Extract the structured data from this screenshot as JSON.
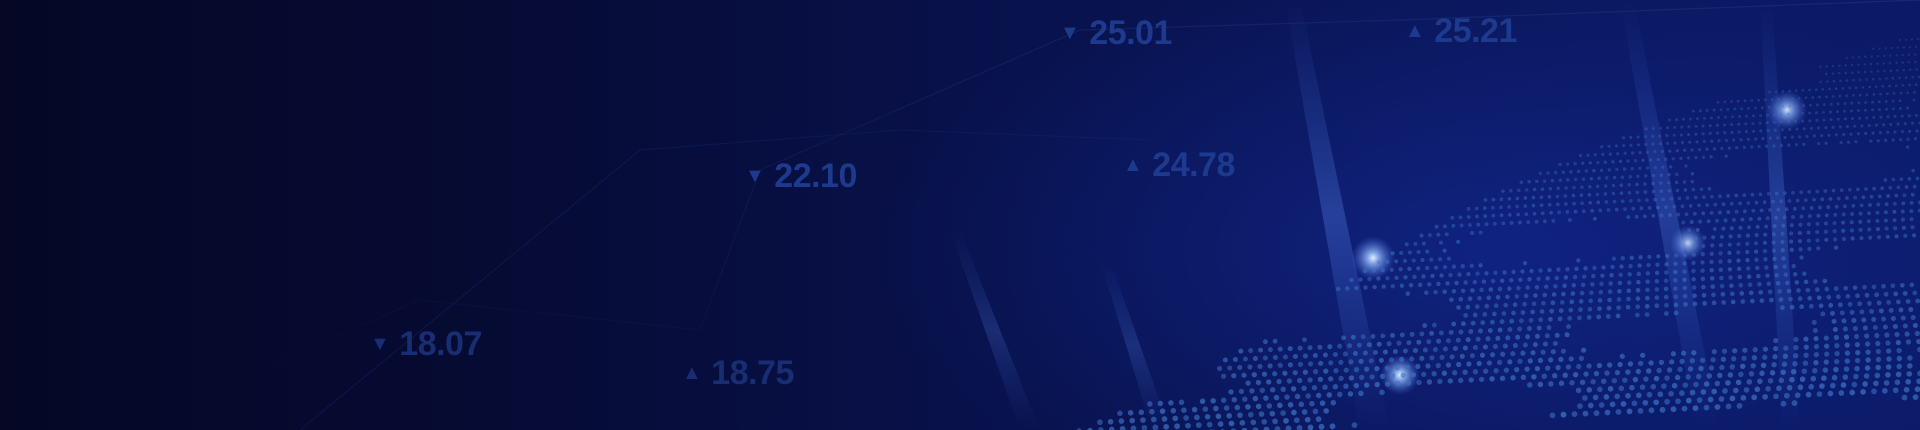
{
  "banner": {
    "colors": {
      "background_dark": "#050725",
      "background_mid": "#08114a",
      "background_light": "#0b1a66",
      "ticker_text": "#1e3a8e",
      "map_dot": "#3e74c6",
      "glow": "#9fc4ff"
    },
    "tickers": [
      {
        "direction": "down",
        "arrow": "▼",
        "value": "25.01"
      },
      {
        "direction": "up",
        "arrow": "▲",
        "value": "25.21"
      },
      {
        "direction": "down",
        "arrow": "▼",
        "value": "22.10"
      },
      {
        "direction": "up",
        "arrow": "▲",
        "value": "24.78"
      },
      {
        "direction": "down",
        "arrow": "▼",
        "value": "18.07"
      },
      {
        "direction": "up",
        "arrow": "▲",
        "value": "18.75"
      }
    ],
    "decorations": {
      "map_icon": "dotted-world-map-icon",
      "beam_icon": "light-beam-icon",
      "glow_icon": "glow-point-icon"
    }
  }
}
